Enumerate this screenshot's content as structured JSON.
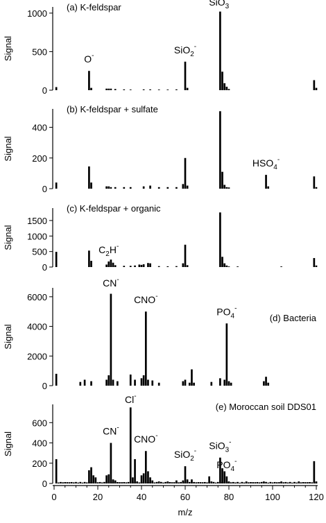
{
  "chart_data": [
    {
      "type": "bar",
      "title": "(a) K-feldspar",
      "title_pos": "top-left",
      "ylabel": "Signal",
      "ylim": [
        0,
        1080
      ],
      "yticks": [
        0,
        500,
        1000
      ],
      "bar_width": 1,
      "x": [
        1,
        16,
        17,
        24,
        25,
        26,
        28,
        32,
        35,
        41,
        44,
        48,
        52,
        56,
        60,
        61,
        76,
        77,
        78,
        79,
        80,
        119,
        120
      ],
      "values": [
        40,
        250,
        30,
        20,
        20,
        20,
        15,
        10,
        8,
        10,
        10,
        8,
        8,
        10,
        370,
        30,
        1020,
        240,
        90,
        45,
        15,
        130,
        30
      ],
      "annotations": [
        {
          "text": "O",
          "sup": "-",
          "sub": "",
          "x": 16
        },
        {
          "text": "SiO",
          "sub": "2",
          "sup": "-",
          "x": 60
        },
        {
          "text": "SiO",
          "sub": "3",
          "sup": "-",
          "x": 76
        }
      ]
    },
    {
      "type": "bar",
      "title": "(b) K-feldspar + sulfate",
      "title_pos": "top-left",
      "ylabel": "Signal",
      "ylim": [
        0,
        520
      ],
      "yticks": [
        0,
        200,
        400
      ],
      "bar_width": 1,
      "x": [
        1,
        16,
        17,
        24,
        25,
        26,
        28,
        32,
        35,
        41,
        44,
        48,
        52,
        56,
        59,
        60,
        61,
        76,
        77,
        78,
        79,
        80,
        97,
        98,
        119,
        120
      ],
      "values": [
        40,
        145,
        40,
        15,
        15,
        10,
        10,
        10,
        10,
        15,
        20,
        10,
        10,
        10,
        30,
        200,
        20,
        505,
        110,
        25,
        10,
        8,
        90,
        15,
        80,
        10
      ],
      "annotations": [
        {
          "text": "HSO",
          "sub": "4",
          "sup": "-",
          "x": 97
        }
      ]
    },
    {
      "type": "bar",
      "title": "(c) K-feldspar + organic",
      "title_pos": "top-left",
      "ylabel": "Signal",
      "ylim": [
        0,
        1900
      ],
      "yticks": [
        0,
        500,
        1000,
        1500
      ],
      "bar_width": 1,
      "x": [
        1,
        16,
        17,
        24,
        25,
        26,
        27,
        28,
        32,
        35,
        37,
        39,
        40,
        41,
        43,
        44,
        48,
        52,
        56,
        59,
        60,
        61,
        76,
        77,
        78,
        79,
        80,
        84,
        104,
        119,
        120
      ],
      "values": [
        490,
        530,
        200,
        80,
        180,
        240,
        140,
        60,
        40,
        40,
        50,
        80,
        70,
        90,
        130,
        120,
        30,
        25,
        30,
        120,
        720,
        60,
        1760,
        330,
        120,
        50,
        20,
        20,
        20,
        290,
        50
      ],
      "annotations": [
        {
          "text": "C",
          "sub": "2",
          "mid": "H",
          "sup": "-",
          "x": 25
        }
      ]
    },
    {
      "type": "bar",
      "title": "(d) Bacteria",
      "title_pos": "top-right",
      "ylabel": "Signal",
      "ylim": [
        0,
        6600
      ],
      "yticks": [
        0,
        2000,
        4000,
        6000
      ],
      "bar_width": 1,
      "x": [
        1,
        12,
        14,
        17,
        24,
        25,
        26,
        27,
        29,
        35,
        37,
        40,
        41,
        42,
        43,
        45,
        48,
        59,
        60,
        62,
        63,
        64,
        72,
        76,
        78,
        79,
        80,
        81,
        96,
        97,
        98
      ],
      "values": [
        800,
        250,
        400,
        300,
        400,
        700,
        6200,
        400,
        300,
        750,
        400,
        500,
        700,
        5000,
        400,
        350,
        200,
        300,
        400,
        200,
        1100,
        200,
        250,
        500,
        400,
        4200,
        300,
        200,
        300,
        600,
        200
      ],
      "annotations": [
        {
          "text": "CN",
          "sub": "",
          "sup": "-",
          "x": 26
        },
        {
          "text": "CNO",
          "sub": "",
          "sup": "-",
          "x": 42
        },
        {
          "text": "PO",
          "sub": "4",
          "sup": "-",
          "x": 79
        }
      ]
    },
    {
      "type": "bar",
      "title": "(e) Moroccan soil DDS01",
      "title_pos": "top-right",
      "ylabel": "Signal",
      "xlabel": "m/z",
      "xlim": [
        0,
        120
      ],
      "xticks": [
        0,
        20,
        40,
        60,
        80,
        100,
        120
      ],
      "ylim": [
        0,
        780
      ],
      "yticks": [
        0,
        200,
        400,
        600
      ],
      "bar_width": 1,
      "x": [
        1,
        16,
        17,
        18,
        19,
        24,
        25,
        26,
        27,
        28,
        35,
        36,
        37,
        38,
        40,
        41,
        42,
        43,
        44,
        45,
        48,
        52,
        56,
        59,
        60,
        61,
        63,
        71,
        72,
        76,
        77,
        78,
        79,
        80,
        88,
        96,
        104,
        112,
        119,
        120
      ],
      "values": [
        240,
        130,
        160,
        80,
        60,
        80,
        90,
        400,
        40,
        30,
        750,
        60,
        240,
        20,
        80,
        100,
        320,
        120,
        60,
        30,
        20,
        20,
        30,
        30,
        170,
        40,
        40,
        70,
        20,
        255,
        150,
        120,
        70,
        20,
        20,
        20,
        20,
        20,
        220,
        20
      ],
      "baseline_noise": 15,
      "annotations": [
        {
          "text": "Cl",
          "sub": "",
          "sup": "-",
          "x": 35
        },
        {
          "text": "CN",
          "sub": "",
          "sup": "-",
          "x": 26
        },
        {
          "text": "CNO",
          "sub": "",
          "sup": "-",
          "x": 42
        },
        {
          "text": "SiO",
          "sub": "2",
          "sup": "-",
          "x": 60
        },
        {
          "text": "SiO",
          "sub": "3",
          "sup": "-",
          "x": 76
        },
        {
          "text": "PO",
          "sub": "4",
          "sup": "-",
          "x": 79
        }
      ]
    }
  ]
}
